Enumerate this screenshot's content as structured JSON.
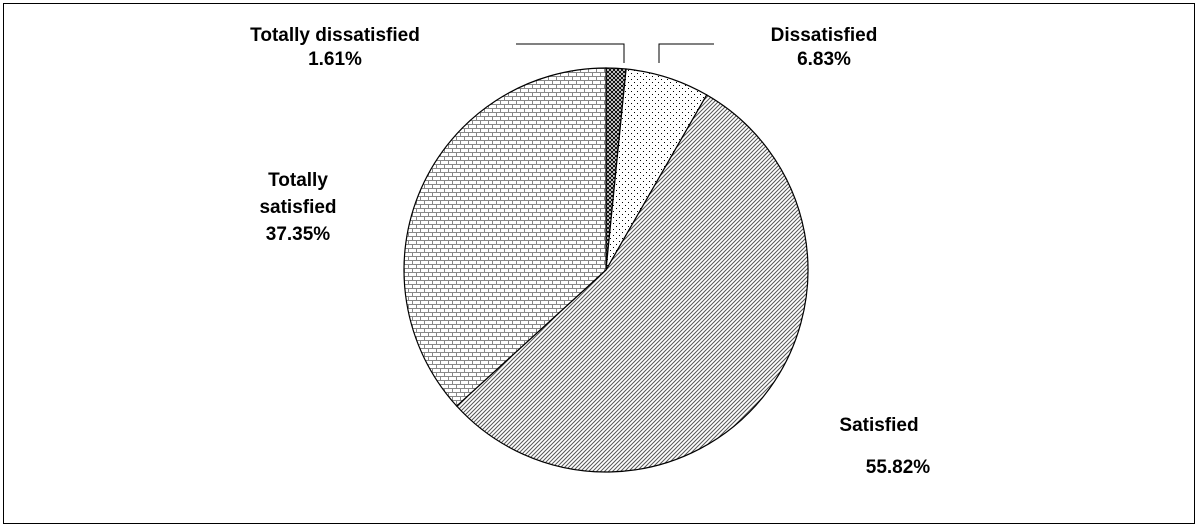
{
  "chart_data": {
    "type": "pie",
    "categories": [
      "Totally dissatisfied",
      "Dissatisfied",
      "Satisfied",
      "Totally satisfied"
    ],
    "values": [
      1.61,
      6.83,
      55.82,
      37.35
    ],
    "value_labels": [
      "1.61%",
      "6.83%",
      "55.82%",
      "37.35%"
    ],
    "start_angle_deg": 0,
    "direction": "clockwise",
    "legend": "none",
    "patterns": [
      "crosshatch-dense",
      "dotted-sparse",
      "diagonal-dense",
      "brick"
    ]
  },
  "labels": {
    "totally_dissatisfied": {
      "name": "Totally dissatisfied",
      "value": "1.61%"
    },
    "dissatisfied": {
      "name": "Dissatisfied",
      "value": "6.83%"
    },
    "satisfied": {
      "name": "Satisfied",
      "value": "55.82%"
    },
    "totally_satisfied": {
      "name_line1": "Totally",
      "name_line2": "satisfied",
      "value": "37.35%"
    }
  }
}
